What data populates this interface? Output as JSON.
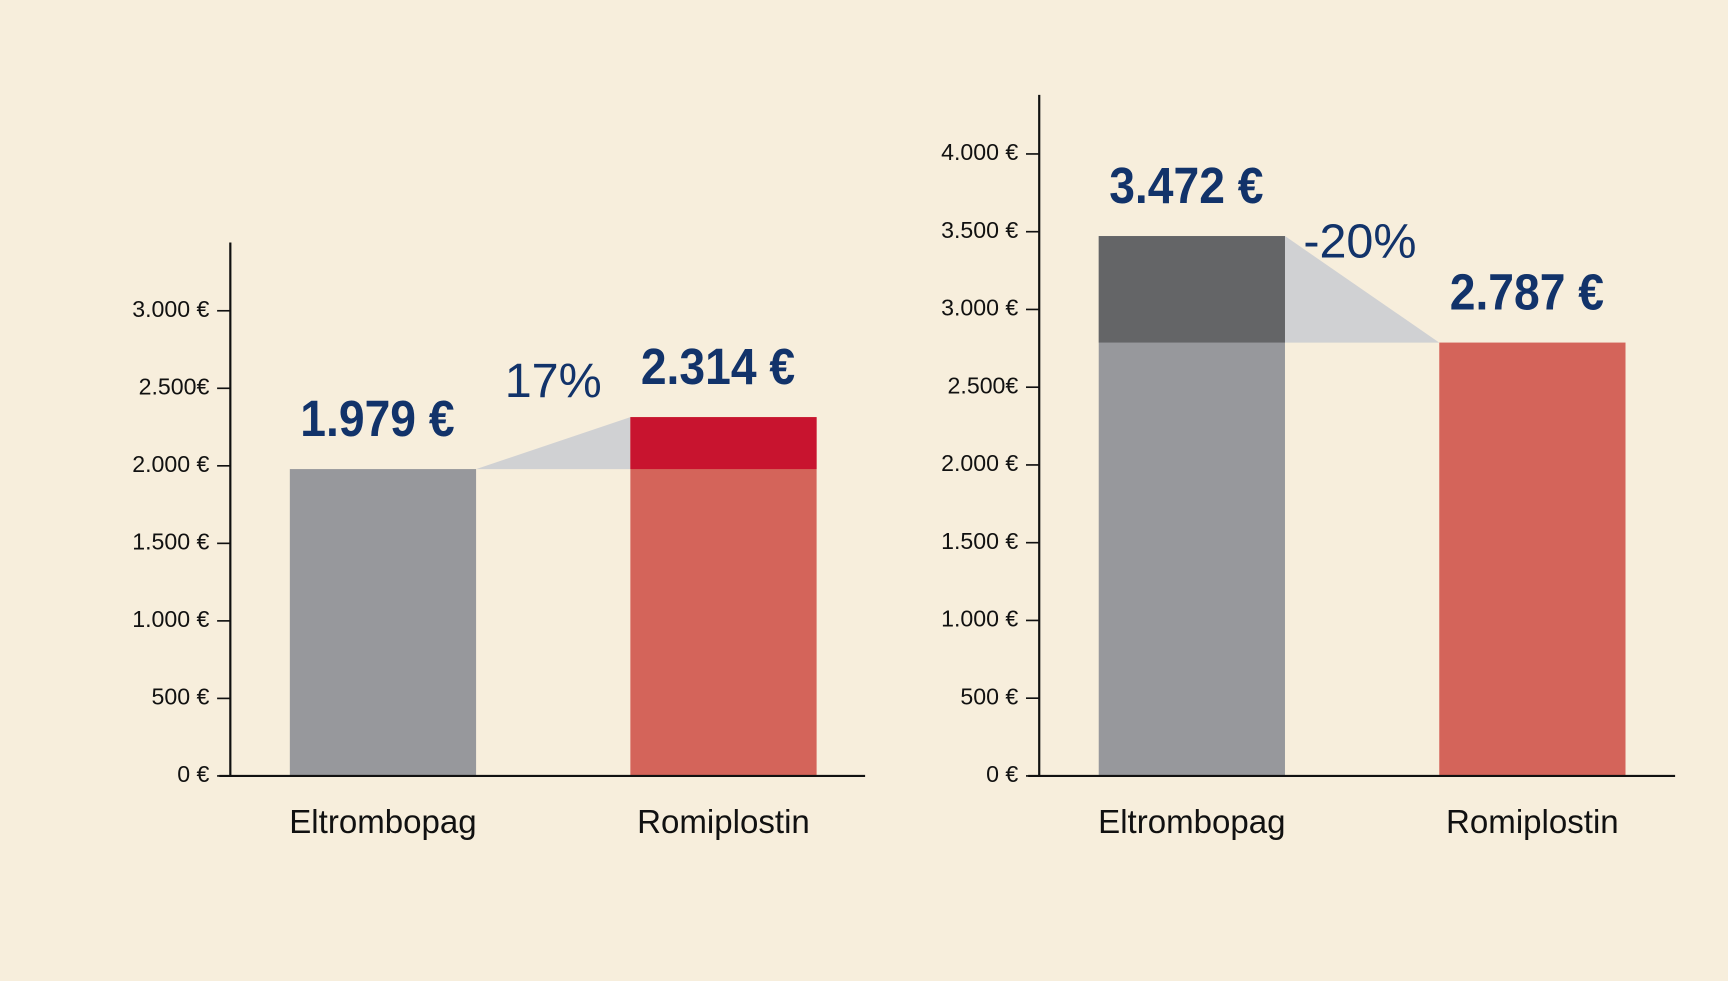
{
  "chart_data": [
    {
      "type": "bar",
      "categories": [
        "Eltrombopag",
        "Romiplostin"
      ],
      "values": [
        1979,
        2314
      ],
      "value_labels": [
        "1.979 €",
        "2.314 €"
      ],
      "colors": [
        "#97989c",
        "#d4645a"
      ],
      "highlight_color": "#c8142f",
      "annotation": "17%",
      "ylim": [
        0,
        3440
      ],
      "yticks": [
        {
          "value": 0,
          "label": "0 €"
        },
        {
          "value": 500,
          "label": "500 €"
        },
        {
          "value": 1000,
          "label": "1.000 €"
        },
        {
          "value": 1500,
          "label": "1.500 €"
        },
        {
          "value": 2000,
          "label": "2.000 €"
        },
        {
          "value": 2500,
          "label": "2.500€"
        },
        {
          "value": 3000,
          "label": "3.000 €"
        }
      ]
    },
    {
      "type": "bar",
      "categories": [
        "Eltrombopag",
        "Romiplostin"
      ],
      "values": [
        3472,
        2787
      ],
      "value_labels": [
        "3.472 €",
        "2.787 €"
      ],
      "colors": [
        "#97989c",
        "#d4645a"
      ],
      "highlight_color": "#646567",
      "annotation": "-20%",
      "ylim": [
        0,
        4380
      ],
      "yticks": [
        {
          "value": 0,
          "label": "0 €"
        },
        {
          "value": 500,
          "label": "500 €"
        },
        {
          "value": 1000,
          "label": "1.000 €"
        },
        {
          "value": 1500,
          "label": "1.500 €"
        },
        {
          "value": 2000,
          "label": "2.000 €"
        },
        {
          "value": 2500,
          "label": "2.500€"
        },
        {
          "value": 3000,
          "label": "3.000 €"
        },
        {
          "value": 3500,
          "label": "3.500 €"
        },
        {
          "value": 4000,
          "label": "4.000 €"
        }
      ]
    }
  ]
}
